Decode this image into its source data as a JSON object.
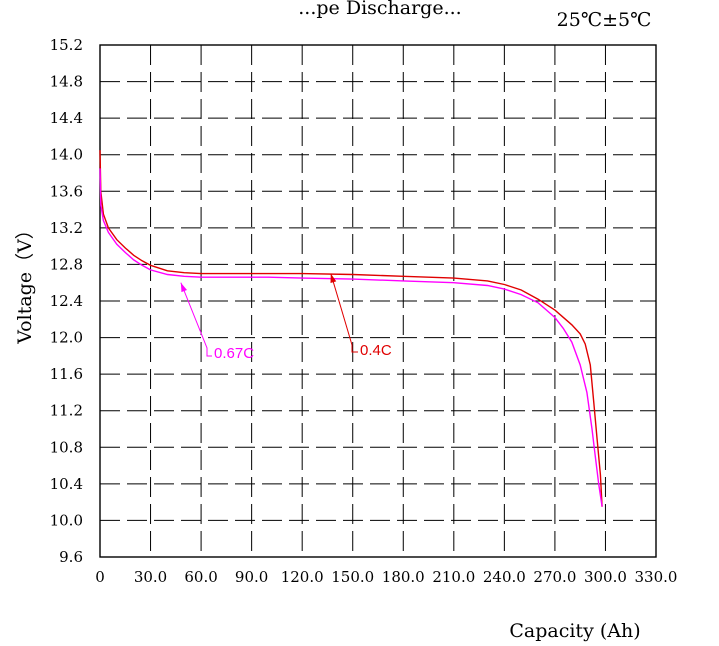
{
  "chart_data": {
    "type": "line",
    "title": "...pe Discharge...",
    "condition": "25℃±5℃",
    "xlabel": "Capacity (Ah)",
    "ylabel": "Voltage（V）",
    "xlim": [
      0,
      330
    ],
    "ylim": [
      9.6,
      15.2
    ],
    "grid": true,
    "x_ticks": [
      "0",
      "30.0",
      "60.0",
      "90.0",
      "120.0",
      "150.0",
      "180.0",
      "210.0",
      "240.0",
      "270.0",
      "300.0",
      "330.0"
    ],
    "y_ticks": [
      "9.6",
      "10.0",
      "10.4",
      "10.8",
      "11.2",
      "11.6",
      "12.0",
      "12.4",
      "12.8",
      "13.2",
      "13.6",
      "14.0",
      "14.4",
      "14.8",
      "15.2"
    ],
    "series": [
      {
        "name": "0.4C",
        "color": "#e00000",
        "x": [
          0,
          0.5,
          2,
          5,
          10,
          15,
          20,
          25,
          30,
          40,
          50,
          60,
          80,
          100,
          120,
          150,
          180,
          210,
          230,
          240,
          250,
          260,
          270,
          280,
          285,
          288,
          291,
          293,
          295,
          297,
          298
        ],
        "y": [
          14.05,
          13.6,
          13.35,
          13.2,
          13.07,
          12.98,
          12.9,
          12.84,
          12.79,
          12.73,
          12.71,
          12.7,
          12.7,
          12.7,
          12.7,
          12.69,
          12.67,
          12.65,
          12.62,
          12.58,
          12.52,
          12.42,
          12.3,
          12.14,
          12.04,
          11.93,
          11.7,
          11.3,
          10.9,
          10.5,
          10.15
        ]
      },
      {
        "name": "0.67C",
        "color": "#ff00ff",
        "x": [
          0,
          0.5,
          2,
          5,
          10,
          15,
          20,
          25,
          30,
          40,
          50,
          60,
          80,
          100,
          120,
          150,
          180,
          210,
          230,
          240,
          250,
          260,
          265,
          270,
          275,
          280,
          285,
          289,
          292,
          294,
          296,
          298
        ],
        "y": [
          13.85,
          13.45,
          13.28,
          13.15,
          13.02,
          12.93,
          12.85,
          12.79,
          12.74,
          12.69,
          12.67,
          12.66,
          12.66,
          12.66,
          12.65,
          12.64,
          12.62,
          12.6,
          12.57,
          12.53,
          12.47,
          12.38,
          12.3,
          12.22,
          12.1,
          11.95,
          11.7,
          11.4,
          11.0,
          10.7,
          10.4,
          10.15
        ]
      }
    ],
    "annotations": [
      {
        "text": "0.67C",
        "series": "0.67C",
        "point_x": 48,
        "point_y": 12.6
      },
      {
        "text": "0.4C",
        "series": "0.4C",
        "point_x": 137,
        "point_y": 12.7
      }
    ]
  }
}
